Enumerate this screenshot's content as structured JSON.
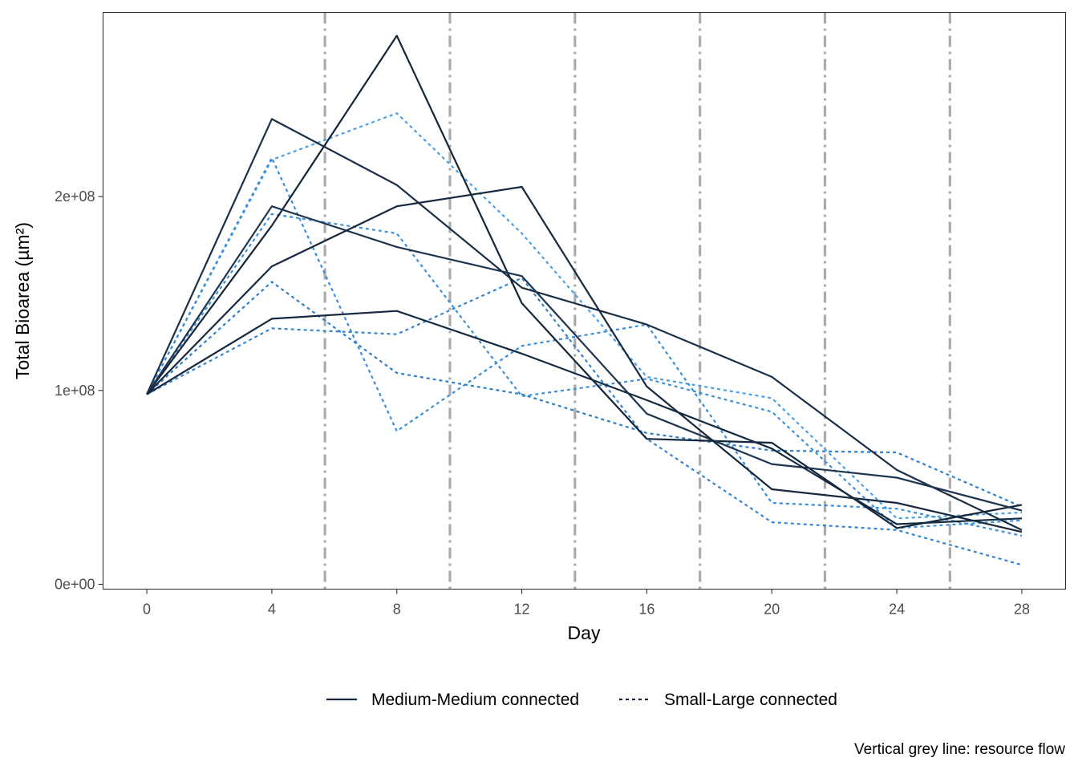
{
  "chart_data": {
    "type": "line",
    "xlabel": "Day",
    "ylabel": "Total Bioarea (µm²)",
    "x_ticks": [
      "0",
      "4",
      "8",
      "12",
      "16",
      "20",
      "24",
      "28"
    ],
    "y_ticks": [
      "0e+00",
      "1e+08",
      "2e+08"
    ],
    "xlim": [
      -1.4,
      29.4
    ],
    "ylim": [
      -2500000,
      295000000
    ],
    "grid": false,
    "caption": "Vertical grey line: resource flow",
    "resource_flow_days": [
      5.7,
      9.7,
      13.7,
      17.7,
      21.7,
      25.7
    ],
    "x": [
      0,
      4,
      8,
      12,
      16,
      20,
      24,
      28
    ],
    "legend": {
      "position": "bottom",
      "entries": [
        {
          "label": "Medium-Medium connected",
          "linetype": "solid",
          "color": "#13263a"
        },
        {
          "label": "Small-Large connected",
          "linetype": "dotted",
          "color": "#2d7fcb"
        }
      ]
    },
    "series": [
      {
        "group": "Medium-Medium connected",
        "color": "#1b2f46",
        "values": [
          98000000,
          240000000,
          206000000,
          153000000,
          134000000,
          107000000,
          59000000,
          28000000
        ]
      },
      {
        "group": "Medium-Medium connected",
        "color": "#13263a",
        "values": [
          98000000,
          185000000,
          283000000,
          145000000,
          75000000,
          73000000,
          29000000,
          41000000
        ]
      },
      {
        "group": "Medium-Medium connected",
        "color": "#1e3550",
        "values": [
          98000000,
          195000000,
          174000000,
          159000000,
          88000000,
          62000000,
          55000000,
          38000000
        ]
      },
      {
        "group": "Medium-Medium connected",
        "color": "#17293f",
        "values": [
          98000000,
          164000000,
          195000000,
          205000000,
          102000000,
          49000000,
          42000000,
          27000000
        ]
      },
      {
        "group": "Medium-Medium connected",
        "color": "#152a41",
        "values": [
          98000000,
          137000000,
          141000000,
          119000000,
          95000000,
          70000000,
          31000000,
          34000000
        ]
      },
      {
        "group": "Small-Large connected",
        "color": "#4aa0e6",
        "values": [
          98000000,
          219000000,
          243000000,
          181000000,
          107000000,
          96000000,
          34000000,
          37000000
        ]
      },
      {
        "group": "Small-Large connected",
        "color": "#3a8ed8",
        "values": [
          98000000,
          220000000,
          79000000,
          123000000,
          134000000,
          42000000,
          39000000,
          25000000
        ]
      },
      {
        "group": "Small-Large connected",
        "color": "#3c90dc",
        "values": [
          98000000,
          191000000,
          181000000,
          97000000,
          106000000,
          89000000,
          29000000,
          33000000
        ]
      },
      {
        "group": "Small-Large connected",
        "color": "#2d7fcb",
        "values": [
          98000000,
          156000000,
          109000000,
          98000000,
          78000000,
          69000000,
          68000000,
          40000000
        ]
      },
      {
        "group": "Small-Large connected",
        "color": "#3585d0",
        "values": [
          98000000,
          132000000,
          129000000,
          158000000,
          75000000,
          32000000,
          28000000,
          10000000
        ]
      }
    ]
  }
}
